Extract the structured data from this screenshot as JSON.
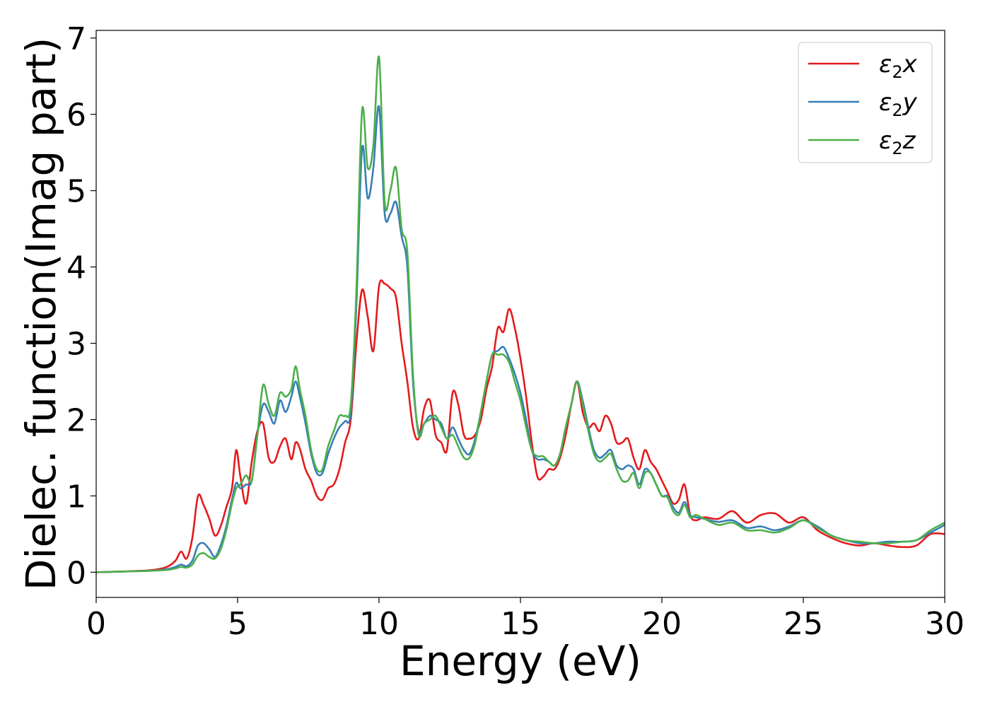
{
  "chart_data": {
    "type": "line",
    "xlabel": "Energy (eV)",
    "ylabel": "Dielec. function(Imag part)",
    "xlim": [
      0,
      30
    ],
    "ylim": [
      -0.33,
      7.1
    ],
    "xticks": [
      0,
      5,
      10,
      15,
      20,
      25,
      30
    ],
    "yticks": [
      0,
      1,
      2,
      3,
      4,
      5,
      6,
      7
    ],
    "grid": false,
    "legend_position": "top-right",
    "series": [
      {
        "name": "ε2x",
        "legend": {
          "symbol": "ε",
          "sub": "2",
          "suffix": "x"
        },
        "color": "#e41a1c",
        "x": [
          0,
          1,
          2,
          2.5,
          2.8,
          3.0,
          3.2,
          3.4,
          3.6,
          3.8,
          4.0,
          4.2,
          4.4,
          4.6,
          4.8,
          4.95,
          5.1,
          5.3,
          5.5,
          5.7,
          5.9,
          6.1,
          6.3,
          6.5,
          6.7,
          6.9,
          7.05,
          7.2,
          7.4,
          7.6,
          7.8,
          8.0,
          8.2,
          8.4,
          8.6,
          8.8,
          9.0,
          9.2,
          9.4,
          9.6,
          9.8,
          10.0,
          10.2,
          10.4,
          10.6,
          10.8,
          11.0,
          11.2,
          11.4,
          11.6,
          11.8,
          12.0,
          12.2,
          12.4,
          12.6,
          12.8,
          13.0,
          13.2,
          13.4,
          13.6,
          13.8,
          14.0,
          14.2,
          14.4,
          14.6,
          14.8,
          15.0,
          15.2,
          15.4,
          15.6,
          15.8,
          16.0,
          16.2,
          16.4,
          16.6,
          16.8,
          17.0,
          17.2,
          17.4,
          17.6,
          17.8,
          18.0,
          18.2,
          18.4,
          18.6,
          18.8,
          19.0,
          19.2,
          19.4,
          19.6,
          19.8,
          20.0,
          20.2,
          20.4,
          20.6,
          20.8,
          21.0,
          21.2,
          21.5,
          22.0,
          22.5,
          23.0,
          23.5,
          24.0,
          24.5,
          25.0,
          25.5,
          26.0,
          26.5,
          27.0,
          27.5,
          28.0,
          28.5,
          29.0,
          29.5,
          30.0
        ],
        "y": [
          0.0,
          0.01,
          0.03,
          0.07,
          0.15,
          0.27,
          0.18,
          0.45,
          1.0,
          0.88,
          0.7,
          0.48,
          0.6,
          0.85,
          1.1,
          1.6,
          1.25,
          0.9,
          1.45,
          1.85,
          1.95,
          1.5,
          1.45,
          1.65,
          1.75,
          1.48,
          1.7,
          1.62,
          1.35,
          1.2,
          1.0,
          0.95,
          1.1,
          1.15,
          1.35,
          1.7,
          2.0,
          3.0,
          3.7,
          3.35,
          2.9,
          3.75,
          3.78,
          3.72,
          3.6,
          3.0,
          2.5,
          1.9,
          1.75,
          2.15,
          2.25,
          1.8,
          1.7,
          1.6,
          2.35,
          2.2,
          1.8,
          1.75,
          1.8,
          2.0,
          2.4,
          2.7,
          3.2,
          3.15,
          3.45,
          3.2,
          2.8,
          2.3,
          1.7,
          1.25,
          1.25,
          1.35,
          1.35,
          1.5,
          1.8,
          2.2,
          2.5,
          2.1,
          1.9,
          1.95,
          1.85,
          2.05,
          1.95,
          1.7,
          1.7,
          1.75,
          1.5,
          1.35,
          1.6,
          1.45,
          1.35,
          1.2,
          1.05,
          0.9,
          0.95,
          1.15,
          0.75,
          0.68,
          0.72,
          0.7,
          0.8,
          0.65,
          0.75,
          0.77,
          0.65,
          0.72,
          0.55,
          0.45,
          0.38,
          0.35,
          0.38,
          0.35,
          0.33,
          0.35,
          0.5,
          0.5
        ]
      },
      {
        "name": "ε2y",
        "legend": {
          "symbol": "ε",
          "sub": "2",
          "suffix": "y"
        },
        "color": "#377eb8",
        "x": [
          0,
          1,
          2,
          2.5,
          2.8,
          3.0,
          3.2,
          3.4,
          3.6,
          3.8,
          4.0,
          4.2,
          4.4,
          4.6,
          4.8,
          4.95,
          5.1,
          5.3,
          5.5,
          5.7,
          5.9,
          6.1,
          6.3,
          6.5,
          6.7,
          6.9,
          7.05,
          7.2,
          7.4,
          7.6,
          7.8,
          8.0,
          8.2,
          8.4,
          8.6,
          8.8,
          9.0,
          9.2,
          9.4,
          9.6,
          9.8,
          10.0,
          10.2,
          10.4,
          10.6,
          10.8,
          11.0,
          11.2,
          11.4,
          11.6,
          11.8,
          12.0,
          12.2,
          12.4,
          12.6,
          12.8,
          13.0,
          13.2,
          13.4,
          13.6,
          13.8,
          14.0,
          14.2,
          14.4,
          14.6,
          14.8,
          15.0,
          15.2,
          15.4,
          15.6,
          15.8,
          16.0,
          16.2,
          16.4,
          16.6,
          16.8,
          17.0,
          17.2,
          17.4,
          17.6,
          17.8,
          18.0,
          18.2,
          18.4,
          18.6,
          18.8,
          19.0,
          19.2,
          19.4,
          19.6,
          19.8,
          20.0,
          20.2,
          20.4,
          20.6,
          20.8,
          21.0,
          21.2,
          21.5,
          22.0,
          22.5,
          23.0,
          23.5,
          24.0,
          24.5,
          25.0,
          25.5,
          26.0,
          26.5,
          27.0,
          27.5,
          28.0,
          28.5,
          29.0,
          29.5,
          30.0
        ],
        "y": [
          0.0,
          0.01,
          0.02,
          0.04,
          0.07,
          0.1,
          0.08,
          0.15,
          0.35,
          0.38,
          0.3,
          0.2,
          0.35,
          0.6,
          0.95,
          1.17,
          1.1,
          1.15,
          1.2,
          1.8,
          2.2,
          2.1,
          1.95,
          2.25,
          2.1,
          2.3,
          2.5,
          2.3,
          1.95,
          1.55,
          1.3,
          1.3,
          1.55,
          1.75,
          1.9,
          1.98,
          2.1,
          3.5,
          5.55,
          4.9,
          5.3,
          6.1,
          4.7,
          4.7,
          4.85,
          4.4,
          4.0,
          2.5,
          1.85,
          1.95,
          2.05,
          2.0,
          1.95,
          1.75,
          1.9,
          1.75,
          1.6,
          1.55,
          1.75,
          2.1,
          2.5,
          2.85,
          2.9,
          2.95,
          2.8,
          2.6,
          2.35,
          2.0,
          1.6,
          1.48,
          1.48,
          1.45,
          1.4,
          1.55,
          1.9,
          2.2,
          2.5,
          2.25,
          1.9,
          1.6,
          1.5,
          1.55,
          1.6,
          1.4,
          1.35,
          1.4,
          1.35,
          1.15,
          1.35,
          1.3,
          1.15,
          1.0,
          1.0,
          0.85,
          0.78,
          0.92,
          0.75,
          0.72,
          0.7,
          0.66,
          0.68,
          0.58,
          0.6,
          0.55,
          0.6,
          0.68,
          0.6,
          0.48,
          0.42,
          0.38,
          0.38,
          0.4,
          0.4,
          0.42,
          0.52,
          0.62
        ]
      },
      {
        "name": "ε2z",
        "legend": {
          "symbol": "ε",
          "sub": "2",
          "suffix": "z"
        },
        "color": "#4daf4a",
        "x": [
          0,
          1,
          2,
          2.5,
          2.8,
          3.0,
          3.2,
          3.4,
          3.6,
          3.8,
          4.0,
          4.2,
          4.4,
          4.6,
          4.8,
          4.95,
          5.1,
          5.3,
          5.5,
          5.7,
          5.9,
          6.1,
          6.3,
          6.5,
          6.7,
          6.9,
          7.05,
          7.2,
          7.4,
          7.6,
          7.8,
          8.0,
          8.2,
          8.4,
          8.6,
          8.8,
          9.0,
          9.2,
          9.4,
          9.6,
          9.8,
          10.0,
          10.2,
          10.4,
          10.6,
          10.8,
          11.0,
          11.2,
          11.4,
          11.6,
          11.8,
          12.0,
          12.2,
          12.4,
          12.6,
          12.8,
          13.0,
          13.2,
          13.4,
          13.6,
          13.8,
          14.0,
          14.2,
          14.4,
          14.6,
          14.8,
          15.0,
          15.2,
          15.4,
          15.6,
          15.8,
          16.0,
          16.2,
          16.4,
          16.6,
          16.8,
          17.0,
          17.2,
          17.4,
          17.6,
          17.8,
          18.0,
          18.2,
          18.4,
          18.6,
          18.8,
          19.0,
          19.2,
          19.4,
          19.6,
          19.8,
          20.0,
          20.2,
          20.4,
          20.6,
          20.8,
          21.0,
          21.2,
          21.5,
          22.0,
          22.5,
          23.0,
          23.5,
          24.0,
          24.5,
          25.0,
          25.5,
          26.0,
          26.5,
          27.0,
          27.5,
          28.0,
          28.5,
          29.0,
          29.5,
          30.0
        ],
        "y": [
          0.0,
          0.01,
          0.02,
          0.03,
          0.05,
          0.07,
          0.06,
          0.1,
          0.22,
          0.25,
          0.2,
          0.18,
          0.3,
          0.55,
          0.9,
          1.1,
          1.15,
          1.27,
          1.2,
          1.8,
          2.45,
          2.2,
          2.05,
          2.35,
          2.3,
          2.4,
          2.7,
          2.4,
          2.05,
          1.6,
          1.35,
          1.35,
          1.65,
          1.85,
          2.05,
          2.05,
          2.2,
          3.7,
          6.05,
          5.3,
          5.6,
          6.75,
          4.85,
          5.0,
          5.3,
          4.5,
          4.2,
          2.6,
          1.8,
          1.95,
          2.0,
          2.05,
          1.9,
          1.75,
          1.8,
          1.65,
          1.5,
          1.5,
          1.7,
          2.1,
          2.5,
          2.85,
          2.85,
          2.85,
          2.75,
          2.5,
          2.25,
          1.9,
          1.6,
          1.52,
          1.52,
          1.45,
          1.4,
          1.55,
          1.9,
          2.2,
          2.5,
          2.2,
          1.85,
          1.55,
          1.45,
          1.5,
          1.55,
          1.35,
          1.2,
          1.2,
          1.3,
          1.1,
          1.3,
          1.3,
          1.15,
          1.0,
          0.98,
          0.8,
          0.75,
          0.88,
          0.72,
          0.75,
          0.7,
          0.62,
          0.65,
          0.55,
          0.55,
          0.52,
          0.58,
          0.68,
          0.58,
          0.48,
          0.42,
          0.4,
          0.38,
          0.38,
          0.4,
          0.42,
          0.55,
          0.65
        ]
      }
    ]
  }
}
